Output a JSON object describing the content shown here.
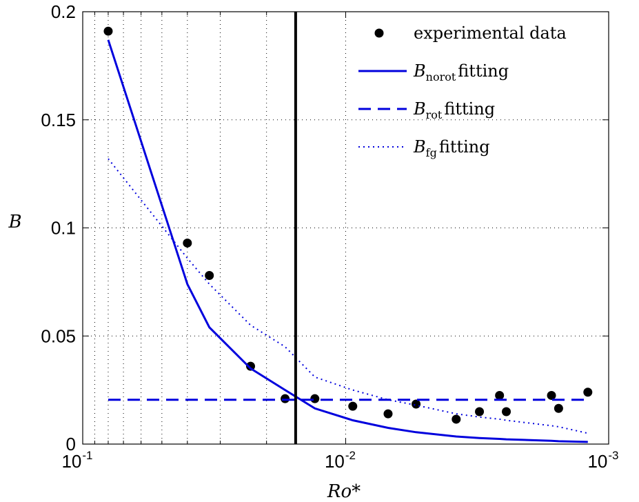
{
  "chart_data": {
    "type": "scatter",
    "xlabel": "Ro*",
    "ylabel": "B",
    "xscale": "log",
    "x_direction": "reversed",
    "xlim": [
      0.1,
      0.001
    ],
    "ylim": [
      0,
      0.2
    ],
    "grid": true,
    "legend_position": "top-right",
    "x_ticks": [
      {
        "base": "10",
        "exp": "-1",
        "value": 0.1
      },
      {
        "base": "10",
        "exp": "-2",
        "value": 0.01
      },
      {
        "base": "10",
        "exp": "-3",
        "value": 0.001
      }
    ],
    "y_ticks": [
      {
        "label": "0",
        "value": 0
      },
      {
        "label": "0.05",
        "value": 0.05
      },
      {
        "label": "0.1",
        "value": 0.1
      },
      {
        "label": "0.15",
        "value": 0.15
      },
      {
        "label": "0.2",
        "value": 0.2
      }
    ],
    "vertical_line_x": 0.0155,
    "series": [
      {
        "name": "experimental data",
        "style": "markers",
        "color": "#000000",
        "x": [
          0.08,
          0.04,
          0.033,
          0.023,
          0.017,
          0.0131,
          0.0094,
          0.0069,
          0.0054,
          0.0038,
          0.0031,
          0.0026,
          0.00245,
          0.00165,
          0.00155,
          0.0012
        ],
        "y": [
          0.191,
          0.093,
          0.078,
          0.036,
          0.021,
          0.021,
          0.0175,
          0.014,
          0.0185,
          0.0115,
          0.015,
          0.0225,
          0.015,
          0.0225,
          0.0165,
          0.024
        ]
      },
      {
        "name": "norot",
        "style": "solid",
        "color": "#0000dd",
        "x": [
          0.08,
          0.04,
          0.033,
          0.023,
          0.017,
          0.0131,
          0.0094,
          0.0069,
          0.0054,
          0.0038,
          0.0031,
          0.0026,
          0.00245,
          0.00165,
          0.00155,
          0.0012
        ],
        "y": [
          0.187,
          0.074,
          0.054,
          0.035,
          0.025,
          0.0165,
          0.011,
          0.0075,
          0.0055,
          0.0035,
          0.0028,
          0.0024,
          0.0022,
          0.0015,
          0.0013,
          0.001
        ]
      },
      {
        "name": "rot",
        "style": "dashed",
        "color": "#0000dd",
        "x": [
          0.08,
          0.0012
        ],
        "y": [
          0.0205,
          0.0205
        ]
      },
      {
        "name": "fg",
        "style": "dotted",
        "color": "#0000dd",
        "x": [
          0.08,
          0.04,
          0.033,
          0.023,
          0.017,
          0.0131,
          0.0094,
          0.0069,
          0.0054,
          0.0038,
          0.0031,
          0.0026,
          0.00245,
          0.00165,
          0.00155,
          0.0012
        ],
        "y": [
          0.132,
          0.086,
          0.074,
          0.055,
          0.045,
          0.031,
          0.025,
          0.0205,
          0.018,
          0.014,
          0.0125,
          0.0115,
          0.011,
          0.0085,
          0.008,
          0.005
        ]
      }
    ],
    "legend": [
      {
        "text": "experimental data",
        "math": "",
        "sub": "",
        "style": "markers"
      },
      {
        "text": "fitting",
        "math": "B",
        "sub": "norot",
        "style": "solid"
      },
      {
        "text": "fitting",
        "math": "B",
        "sub": "rot",
        "style": "dashed"
      },
      {
        "text": "fitting",
        "math": "B",
        "sub": "fg",
        "style": "dotted"
      }
    ]
  }
}
